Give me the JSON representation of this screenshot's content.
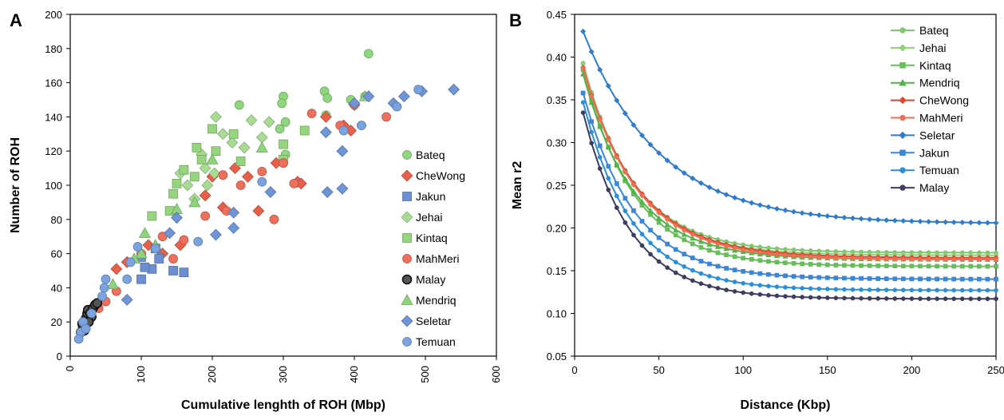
{
  "panels": [
    {
      "label": "A"
    },
    {
      "label": "B"
    }
  ],
  "chart_data": [
    {
      "type": "scatter",
      "panel": "A",
      "title": "",
      "xlabel": "Cumulative lenghth of ROH (Mbp)",
      "ylabel": "Number of ROH",
      "xlim": [
        0,
        600
      ],
      "ylim": [
        0,
        200
      ],
      "xticks": [
        "0",
        "100",
        "200",
        "300",
        "400",
        "500",
        "600"
      ],
      "yticks": [
        "0",
        "20",
        "40",
        "60",
        "80",
        "100",
        "120",
        "140",
        "160",
        "180",
        "200"
      ],
      "grid": false,
      "legend": "right",
      "series": [
        {
          "name": "Bateq",
          "color": "#8fd67e",
          "marker": "circle",
          "points": [
            [
              420,
              177
            ],
            [
              300,
              152
            ],
            [
              298,
              148
            ],
            [
              358,
              155
            ],
            [
              303,
              137
            ],
            [
              295,
              133
            ],
            [
              238,
              147
            ],
            [
              303,
              118
            ],
            [
              330,
              132
            ],
            [
              360,
              141
            ],
            [
              410,
              135
            ],
            [
              395,
              150
            ],
            [
              415,
              152
            ],
            [
              362,
              151
            ]
          ]
        },
        {
          "name": "CheWong",
          "color": "#e8604a",
          "marker": "diamond",
          "points": [
            [
              320,
              102
            ],
            [
              265,
              85
            ],
            [
              215,
              87
            ],
            [
              232,
              110
            ],
            [
              400,
              147
            ],
            [
              360,
              140
            ],
            [
              385,
              135
            ],
            [
              395,
              132
            ],
            [
              250,
              105
            ],
            [
              200,
              105
            ],
            [
              325,
              101
            ],
            [
              290,
              113
            ],
            [
              65,
              51
            ],
            [
              80,
              55
            ],
            [
              110,
              65
            ],
            [
              130,
              60
            ],
            [
              155,
              65
            ],
            [
              190,
              94
            ]
          ]
        },
        {
          "name": "Jakun",
          "color": "#6b8fd0",
          "marker": "square",
          "points": [
            [
              100,
              45
            ],
            [
              115,
              51
            ],
            [
              160,
              49
            ],
            [
              100,
              58
            ],
            [
              125,
              57
            ],
            [
              145,
              50
            ],
            [
              120,
              63
            ],
            [
              105,
              52
            ]
          ]
        },
        {
          "name": "Jehai",
          "color": "#a8dc94",
          "marker": "diamond",
          "points": [
            [
              205,
              140
            ],
            [
              215,
              130
            ],
            [
              245,
              122
            ],
            [
              255,
              138
            ],
            [
              270,
              128
            ],
            [
              280,
              137
            ],
            [
              228,
              125
            ],
            [
              203,
              107
            ],
            [
              193,
              100
            ],
            [
              175,
              92
            ],
            [
              155,
              107
            ],
            [
              190,
              110
            ],
            [
              165,
              100
            ],
            [
              185,
              118
            ]
          ]
        },
        {
          "name": "Kintaq",
          "color": "#96d47e",
          "marker": "square",
          "points": [
            [
              178,
              122
            ],
            [
              200,
              133
            ],
            [
              230,
              130
            ],
            [
              240,
              114
            ],
            [
              205,
              120
            ],
            [
              160,
              109
            ],
            [
              175,
              105
            ],
            [
              150,
              101
            ],
            [
              145,
              95
            ],
            [
              140,
              85
            ],
            [
              115,
              82
            ],
            [
              185,
              115
            ],
            [
              300,
              124
            ],
            [
              300,
              115
            ],
            [
              330,
              132
            ]
          ]
        },
        {
          "name": "MahMeri",
          "color": "#ed6f5c",
          "marker": "circle",
          "points": [
            [
              340,
              142
            ],
            [
              300,
              113
            ],
            [
              270,
              108
            ],
            [
              287,
              80
            ],
            [
              315,
              101
            ],
            [
              445,
              140
            ],
            [
              400,
              147
            ],
            [
              380,
              135
            ],
            [
              215,
              106
            ],
            [
              190,
              82
            ],
            [
              220,
              85
            ],
            [
              240,
              100
            ],
            [
              145,
              57
            ],
            [
              160,
              68
            ],
            [
              130,
              70
            ],
            [
              100,
              60
            ],
            [
              65,
              38
            ],
            [
              50,
              32
            ],
            [
              40,
              28
            ]
          ]
        },
        {
          "name": "Malay",
          "color": "#555555",
          "marker": "circle",
          "points": [
            [
              15,
              14
            ],
            [
              18,
              17
            ],
            [
              20,
              19
            ],
            [
              22,
              22
            ],
            [
              24,
              25
            ],
            [
              25,
              27
            ],
            [
              28,
              25
            ],
            [
              30,
              23
            ],
            [
              32,
              28
            ],
            [
              35,
              30
            ],
            [
              38,
              31
            ],
            [
              20,
              15
            ],
            [
              17,
              19
            ],
            [
              26,
              20
            ]
          ]
        },
        {
          "name": "Mendriq",
          "color": "#8ed47c",
          "marker": "triangle",
          "points": [
            [
              60,
              42
            ],
            [
              105,
              72
            ],
            [
              120,
              65
            ],
            [
              150,
              86
            ],
            [
              175,
              90
            ],
            [
              200,
              115
            ],
            [
              270,
              122
            ],
            [
              415,
              152
            ],
            [
              100,
              60
            ],
            [
              90,
              57
            ]
          ]
        },
        {
          "name": "Seletar",
          "color": "#6f95d6",
          "marker": "diamond",
          "points": [
            [
              540,
              156
            ],
            [
              495,
              155
            ],
            [
              470,
              152
            ],
            [
              455,
              148
            ],
            [
              420,
              152
            ],
            [
              400,
              148
            ],
            [
              360,
              131
            ],
            [
              383,
              120
            ],
            [
              383,
              98
            ],
            [
              362,
              96
            ],
            [
              282,
              96
            ],
            [
              230,
              84
            ],
            [
              230,
              75
            ],
            [
              205,
              71
            ],
            [
              150,
              81
            ],
            [
              80,
              33
            ],
            [
              140,
              72
            ]
          ]
        },
        {
          "name": "Temuan",
          "color": "#7aa3df",
          "marker": "circle",
          "points": [
            [
              490,
              156
            ],
            [
              460,
              146
            ],
            [
              410,
              135
            ],
            [
              385,
              132
            ],
            [
              270,
              102
            ],
            [
              180,
              67
            ],
            [
              120,
              63
            ],
            [
              95,
              64
            ],
            [
              85,
              55
            ],
            [
              80,
              45
            ],
            [
              50,
              45
            ],
            [
              48,
              40
            ],
            [
              45,
              35
            ],
            [
              30,
              25
            ],
            [
              15,
              14
            ],
            [
              12,
              10
            ],
            [
              18,
              20
            ],
            [
              22,
              16
            ]
          ]
        }
      ]
    },
    {
      "type": "line",
      "panel": "B",
      "title": "",
      "xlabel": "Distance (Kbp)",
      "ylabel": "Mean r2",
      "xlim": [
        0,
        250
      ],
      "ylim": [
        0.05,
        0.45
      ],
      "xticks": [
        "0",
        "50",
        "100",
        "150",
        "200",
        "250"
      ],
      "yticks": [
        "0.05",
        "0.10",
        "0.15",
        "0.20",
        "0.25",
        "0.30",
        "0.35",
        "0.40",
        "0.45"
      ],
      "grid": false,
      "legend": "top-right",
      "x": [
        5,
        10,
        15,
        20,
        25,
        30,
        35,
        40,
        45,
        50,
        55,
        60,
        65,
        70,
        75,
        80,
        85,
        90,
        95,
        100,
        105,
        110,
        115,
        120,
        125,
        130,
        135,
        140,
        145,
        150,
        155,
        160,
        165,
        170,
        175,
        180,
        185,
        190,
        195,
        200,
        205,
        210,
        215,
        220,
        225,
        230,
        235,
        240,
        245,
        250
      ],
      "series": [
        {
          "name": "Bateq",
          "color": "#7cc96b",
          "marker": "circle",
          "start": 0.393,
          "end": 0.171,
          "k": 30
        },
        {
          "name": "Jehai",
          "color": "#8fd07a",
          "marker": "diamond",
          "start": 0.392,
          "end": 0.168,
          "k": 30
        },
        {
          "name": "Kintaq",
          "color": "#67be58",
          "marker": "square",
          "start": 0.385,
          "end": 0.155,
          "k": 30
        },
        {
          "name": "Mendriq",
          "color": "#4fb548",
          "marker": "triangle",
          "start": 0.38,
          "end": 0.163,
          "k": 30
        },
        {
          "name": "CheWong",
          "color": "#e2422e",
          "marker": "diamond",
          "start": 0.388,
          "end": 0.165,
          "k": 32
        },
        {
          "name": "MahMeri",
          "color": "#ed7055",
          "marker": "circle",
          "start": 0.387,
          "end": 0.163,
          "k": 32
        },
        {
          "name": "Seletar",
          "color": "#2f7bcc",
          "marker": "diamond",
          "start": 0.43,
          "end": 0.205,
          "k": 45
        },
        {
          "name": "Jakun",
          "color": "#3b86d6",
          "marker": "square",
          "start": 0.358,
          "end": 0.14,
          "k": 30
        },
        {
          "name": "Temuan",
          "color": "#2a8fd9",
          "marker": "circle",
          "start": 0.347,
          "end": 0.127,
          "k": 29
        },
        {
          "name": "Malay",
          "color": "#3d3d60",
          "marker": "circle",
          "start": 0.335,
          "end": 0.117,
          "k": 28
        }
      ]
    }
  ]
}
